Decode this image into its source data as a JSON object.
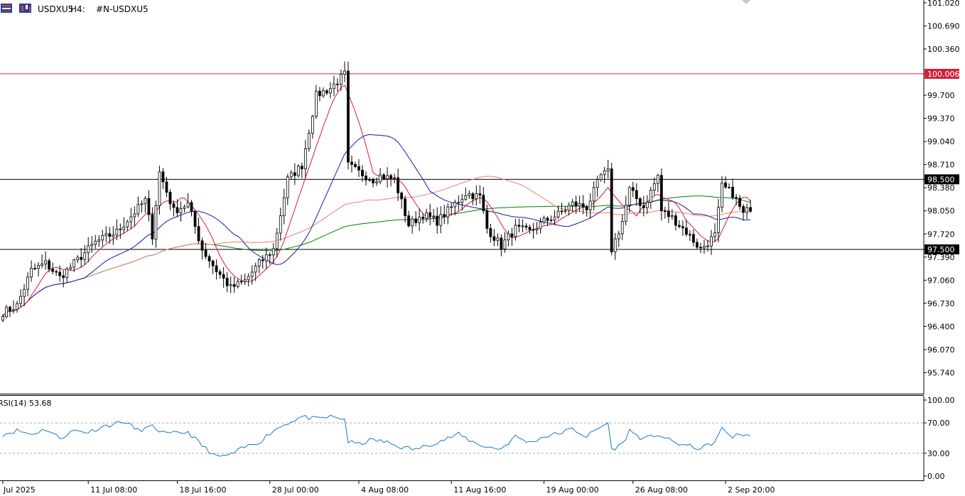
{
  "header": {
    "symbol": "USDXU5",
    "timeframe": "H4:",
    "description": "#N-USDXU5"
  },
  "colors": {
    "red_line": "#d0203a",
    "blue_ma": "#1a1a9c",
    "green_ma": "#008000",
    "salmon_ma": "#f08070",
    "rsi_line": "#1e78c8",
    "price_tag_red": "#d0203a",
    "price_tag_black": "#000000"
  },
  "chart_data": [
    {
      "type": "candlestick",
      "title": "",
      "symbol": "USDXU5",
      "timeframe": "H4",
      "y_ticks": [
        "101.020",
        "100.690",
        "100.360",
        "100.006",
        "99.700",
        "99.370",
        "99.040",
        "98.710",
        "98.500",
        "98.380",
        "98.050",
        "97.720",
        "97.500",
        "97.390",
        "97.060",
        "96.730",
        "96.400",
        "96.070",
        "95.740"
      ],
      "x_ticks": [
        "Jul 2025",
        "11 Jul 08:00",
        "18 Jul 16:00",
        "28 Jul 00:00",
        "4 Aug 08:00",
        "11 Aug 16:00",
        "19 Aug 00:00",
        "26 Aug 08:00",
        "2 Sep 20:00"
      ],
      "ylim": [
        95.43,
        101.06
      ],
      "horizontal_lines": [
        {
          "value": 100.006,
          "label": "100.006",
          "color": "red"
        },
        {
          "value": 98.5,
          "label": "98.500",
          "color": "black"
        },
        {
          "value": 97.5,
          "label": "97.500",
          "color": "black"
        }
      ],
      "anchors": [
        [
          0,
          96.6
        ],
        [
          4,
          96.7
        ],
        [
          8,
          97.2
        ],
        [
          12,
          97.3
        ],
        [
          16,
          97.1
        ],
        [
          22,
          97.4
        ],
        [
          26,
          97.6
        ],
        [
          32,
          97.75
        ],
        [
          40,
          98.2
        ],
        [
          42,
          97.7
        ],
        [
          44,
          98.6
        ],
        [
          48,
          98.05
        ],
        [
          52,
          98.15
        ],
        [
          56,
          97.5
        ],
        [
          60,
          97.2
        ],
        [
          64,
          96.95
        ],
        [
          68,
          97.05
        ],
        [
          72,
          97.3
        ],
        [
          76,
          97.5
        ],
        [
          80,
          98.5
        ],
        [
          84,
          98.7
        ],
        [
          88,
          99.7
        ],
        [
          92,
          99.8
        ],
        [
          96,
          100.0
        ],
        [
          97,
          98.7
        ],
        [
          100,
          98.6
        ],
        [
          104,
          98.5
        ],
        [
          106,
          98.55
        ],
        [
          110,
          98.5
        ],
        [
          114,
          97.85
        ],
        [
          118,
          98.0
        ],
        [
          122,
          97.9
        ],
        [
          126,
          98.1
        ],
        [
          130,
          98.3
        ],
        [
          134,
          98.25
        ],
        [
          136,
          97.8
        ],
        [
          140,
          97.55
        ],
        [
          144,
          97.8
        ],
        [
          148,
          97.75
        ],
        [
          152,
          97.9
        ],
        [
          156,
          98.0
        ],
        [
          160,
          98.15
        ],
        [
          164,
          98.1
        ],
        [
          168,
          98.55
        ],
        [
          170,
          98.6
        ],
        [
          171,
          97.5
        ],
        [
          174,
          97.9
        ],
        [
          176,
          98.35
        ],
        [
          180,
          98.1
        ],
        [
          184,
          98.55
        ],
        [
          185,
          98.05
        ],
        [
          188,
          97.95
        ],
        [
          192,
          97.75
        ],
        [
          196,
          97.5
        ],
        [
          200,
          97.7
        ],
        [
          202,
          98.4
        ],
        [
          205,
          98.3
        ],
        [
          208,
          98.0
        ],
        [
          210,
          98.1
        ]
      ],
      "candle_count": 211,
      "indicators": [
        "red MA",
        "blue MA",
        "salmon MA",
        "green MA"
      ]
    },
    {
      "type": "line",
      "title": "",
      "label": "RSI(14) 53.68",
      "y_ticks": [
        "100.00",
        "70.00",
        "30.00",
        "0.00"
      ],
      "ylim": [
        0,
        100
      ],
      "levels": [
        70,
        30
      ],
      "anchors": [
        [
          0,
          55
        ],
        [
          4,
          60
        ],
        [
          8,
          55
        ],
        [
          12,
          62
        ],
        [
          16,
          50
        ],
        [
          20,
          60
        ],
        [
          24,
          58
        ],
        [
          28,
          65
        ],
        [
          34,
          72
        ],
        [
          38,
          60
        ],
        [
          42,
          65
        ],
        [
          46,
          55
        ],
        [
          52,
          58
        ],
        [
          56,
          40
        ],
        [
          60,
          25
        ],
        [
          64,
          28
        ],
        [
          68,
          38
        ],
        [
          72,
          45
        ],
        [
          76,
          60
        ],
        [
          80,
          70
        ],
        [
          84,
          78
        ],
        [
          88,
          75
        ],
        [
          92,
          78
        ],
        [
          96,
          75
        ],
        [
          97,
          45
        ],
        [
          100,
          42
        ],
        [
          104,
          48
        ],
        [
          108,
          44
        ],
        [
          112,
          38
        ],
        [
          116,
          35
        ],
        [
          120,
          42
        ],
        [
          124,
          48
        ],
        [
          128,
          55
        ],
        [
          132,
          45
        ],
        [
          136,
          38
        ],
        [
          140,
          36
        ],
        [
          144,
          52
        ],
        [
          148,
          44
        ],
        [
          152,
          52
        ],
        [
          156,
          56
        ],
        [
          160,
          62
        ],
        [
          164,
          52
        ],
        [
          168,
          65
        ],
        [
          170,
          70
        ],
        [
          171,
          35
        ],
        [
          174,
          42
        ],
        [
          176,
          60
        ],
        [
          180,
          48
        ],
        [
          184,
          55
        ],
        [
          188,
          45
        ],
        [
          192,
          40
        ],
        [
          196,
          36
        ],
        [
          200,
          45
        ],
        [
          202,
          62
        ],
        [
          205,
          52
        ],
        [
          208,
          55
        ],
        [
          210,
          53.68
        ]
      ]
    }
  ]
}
